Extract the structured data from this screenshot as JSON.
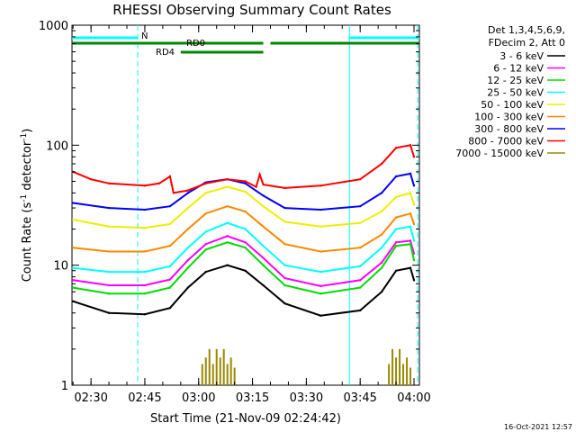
{
  "chart_data": {
    "type": "line",
    "title": "RHESSI Observing Summary Count Rates",
    "xlabel": "Start Time (21-Nov-09 02:24:42)",
    "ylabel": "Count Rate (s⁻¹ detector⁻¹)",
    "y_scale": "log",
    "ylim": [
      1,
      1000
    ],
    "x_unit": "minutes",
    "xlim": [
      "02:24:42",
      "04:01:30"
    ],
    "x_ticks": [
      "02:30",
      "02:45",
      "03:00",
      "03:15",
      "03:30",
      "03:45",
      "04:00"
    ],
    "y_ticks": [
      "1",
      "10",
      "100",
      "1000"
    ],
    "grid": false,
    "legend_position": "right",
    "legend_header": [
      "Det 1,3,4,5,6,9,",
      "FDecim 2, Att 0"
    ],
    "series": [
      {
        "name": "3 - 6 keV",
        "color": "#000000",
        "x": [
          "02:25",
          "02:35",
          "02:45",
          "02:52",
          "02:57",
          "03:02",
          "03:08",
          "03:13",
          "03:18",
          "03:24",
          "03:34",
          "03:45",
          "03:51",
          "03:55",
          "03:59",
          "04:00"
        ],
        "y": [
          5.0,
          4.0,
          3.9,
          4.4,
          6.5,
          8.8,
          10.0,
          9.0,
          6.8,
          4.8,
          3.8,
          4.2,
          6.0,
          9.0,
          9.5,
          7.5
        ]
      },
      {
        "name": "6 - 12 keV",
        "color": "#ff00ff",
        "x": [
          "02:25",
          "02:35",
          "02:45",
          "02:52",
          "02:57",
          "03:02",
          "03:08",
          "03:13",
          "03:18",
          "03:24",
          "03:34",
          "03:45",
          "03:51",
          "03:55",
          "03:59",
          "04:00"
        ],
        "y": [
          7.5,
          6.8,
          6.8,
          7.6,
          11.0,
          15.0,
          17.5,
          15.5,
          11.5,
          7.8,
          6.7,
          7.5,
          10.5,
          15.5,
          16.0,
          12.5
        ]
      },
      {
        "name": "12 - 25 keV",
        "color": "#00dd00",
        "x": [
          "02:25",
          "02:35",
          "02:45",
          "02:52",
          "02:57",
          "03:02",
          "03:08",
          "03:13",
          "03:18",
          "03:24",
          "03:34",
          "03:45",
          "03:51",
          "03:55",
          "03:59",
          "04:00"
        ],
        "y": [
          6.5,
          5.8,
          5.8,
          6.5,
          9.5,
          13.5,
          15.5,
          14.0,
          10.0,
          6.8,
          5.8,
          6.5,
          9.5,
          14.5,
          15.0,
          11.0
        ]
      },
      {
        "name": "25 - 50 keV",
        "color": "#00ffff",
        "x": [
          "02:25",
          "02:35",
          "02:45",
          "02:52",
          "02:57",
          "03:02",
          "03:08",
          "03:13",
          "03:18",
          "03:24",
          "03:34",
          "03:45",
          "03:51",
          "03:55",
          "03:59",
          "04:00"
        ],
        "y": [
          9.5,
          8.8,
          8.8,
          9.8,
          14.0,
          19.0,
          22.5,
          20.0,
          14.5,
          10.0,
          8.8,
          9.8,
          14.0,
          20.0,
          21.0,
          16.0
        ]
      },
      {
        "name": "50 - 100 keV",
        "color": "#eeee00",
        "x": [
          "02:25",
          "02:35",
          "02:45",
          "02:52",
          "02:57",
          "03:02",
          "03:08",
          "03:13",
          "03:18",
          "03:24",
          "03:34",
          "03:45",
          "03:51",
          "03:55",
          "03:59",
          "04:00"
        ],
        "y": [
          24,
          21,
          20.5,
          22,
          30,
          40,
          45,
          41,
          31,
          23,
          21,
          22.5,
          28,
          37,
          40,
          32
        ]
      },
      {
        "name": "100 - 300 keV",
        "color": "#ff8800",
        "x": [
          "02:25",
          "02:35",
          "02:45",
          "02:52",
          "02:57",
          "03:02",
          "03:08",
          "03:13",
          "03:18",
          "03:24",
          "03:34",
          "03:45",
          "03:51",
          "03:55",
          "03:59",
          "04:00"
        ],
        "y": [
          14,
          13,
          13,
          14.5,
          20,
          27,
          31,
          28,
          21,
          15,
          13,
          14,
          18,
          25,
          27,
          22
        ]
      },
      {
        "name": "300 - 800 keV",
        "color": "#0000ff",
        "x": [
          "02:25",
          "02:35",
          "02:45",
          "02:52",
          "02:57",
          "03:02",
          "03:08",
          "03:13",
          "03:18",
          "03:24",
          "03:34",
          "03:45",
          "03:51",
          "03:55",
          "03:59",
          "04:00"
        ],
        "y": [
          33,
          30,
          29,
          31,
          40,
          49,
          52,
          48,
          38,
          30,
          29,
          31,
          40,
          55,
          58,
          46
        ]
      },
      {
        "name": "800 - 7000 keV",
        "color": "#ff0000",
        "x": [
          "02:25",
          "02:30",
          "02:35",
          "02:45",
          "02:49",
          "02:52",
          "02:53",
          "02:57",
          "03:02",
          "03:08",
          "03:13",
          "03:16",
          "03:17",
          "03:18",
          "03:24",
          "03:34",
          "03:45",
          "03:51",
          "03:55",
          "03:59",
          "04:00"
        ],
        "y": [
          60,
          52,
          48,
          46,
          48,
          55,
          40,
          42,
          48,
          52,
          50,
          45,
          57,
          47,
          44,
          46,
          52,
          70,
          95,
          100,
          80
        ]
      },
      {
        "name": "7000 - 15000 keV",
        "color": "#998800",
        "x": [
          "03:01",
          "03:02",
          "03:03",
          "03:04",
          "03:05",
          "03:06",
          "03:07",
          "03:08",
          "03:09",
          "03:10",
          "03:53",
          "03:54",
          "03:55",
          "03:56",
          "03:57",
          "03:58",
          "03:59"
        ],
        "y": [
          1.5,
          1.7,
          2.0,
          1.5,
          2.0,
          1.7,
          2.0,
          1.5,
          1.7,
          1.4,
          1.5,
          2.0,
          1.7,
          2.0,
          1.5,
          1.7,
          1.4
        ]
      }
    ],
    "annotations": {
      "night_label": "N",
      "night_intervals": [
        [
          "02:24:42",
          "02:43"
        ],
        [
          "03:42",
          "04:01:30"
        ]
      ],
      "night_dashed_marks": [
        "02:43",
        "04:01"
      ],
      "night_solid_marks": [
        "03:42"
      ],
      "rd0_label": "RD0",
      "rd0_intervals": [
        [
          "02:24:42",
          "03:18"
        ],
        [
          "03:20",
          "04:01:30"
        ]
      ],
      "rd4_label": "RD4",
      "rd4_intervals": [
        [
          "02:55",
          "03:18"
        ]
      ],
      "flag_level": 640
    },
    "timestamp": "16-Oct-2021 12:57"
  }
}
